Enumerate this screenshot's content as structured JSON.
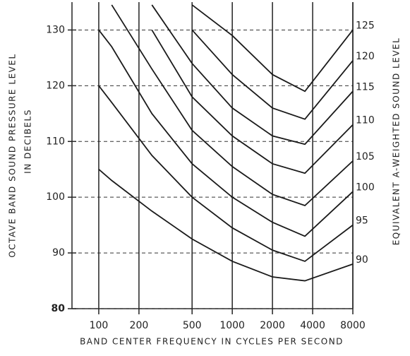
{
  "chart_data": {
    "type": "line",
    "xscale": "log",
    "grid": true,
    "ylabel": [
      "OCTAVE BAND SOUND PRESSURE LEVEL",
      "IN DECIBELS"
    ],
    "xlabel": "BAND CENTER FREQUENCY IN CYCLES PER SECOND",
    "y2label": "EQUIVALENT A-WEIGHTED SOUND LEVEL",
    "x": [
      100,
      125,
      250,
      500,
      1000,
      2000,
      3500,
      8000
    ],
    "xlim": [
      63,
      8000
    ],
    "xticks": [
      100,
      200,
      500,
      1000,
      2000,
      4000,
      8000
    ],
    "ylim": [
      80,
      135
    ],
    "yticks": [
      80,
      90,
      100,
      110,
      120,
      130
    ],
    "series": [
      {
        "name": "90",
        "color": "#1a1a1a",
        "values": [
          105,
          103,
          97.5,
          92.5,
          88.5,
          85.7,
          85,
          88
        ]
      },
      {
        "name": "95",
        "color": "#1a1a1a",
        "values": [
          120,
          117,
          107.5,
          100,
          94.5,
          90.5,
          88.5,
          95
        ]
      },
      {
        "name": "100",
        "color": "#1a1a1a",
        "values": [
          130,
          127,
          115,
          106,
          100,
          95.5,
          93,
          101
        ]
      },
      {
        "name": "105",
        "color": "#1a1a1a",
        "values": [
          null,
          134.5,
          123,
          112,
          105.5,
          100.5,
          98.5,
          106.5
        ]
      },
      {
        "name": "110",
        "color": "#1a1a1a",
        "values": [
          null,
          null,
          130,
          118,
          111,
          106,
          104.3,
          113
        ]
      },
      {
        "name": "115",
        "color": "#1a1a1a",
        "values": [
          null,
          null,
          134.5,
          124,
          116,
          111,
          109.5,
          119
        ]
      },
      {
        "name": "120",
        "color": "#1a1a1a",
        "values": [
          null,
          null,
          null,
          130,
          122,
          116,
          114,
          124.5
        ]
      },
      {
        "name": "125",
        "color": "#1a1a1a",
        "values": [
          null,
          null,
          null,
          134.5,
          129,
          122,
          119,
          130
        ]
      }
    ]
  }
}
